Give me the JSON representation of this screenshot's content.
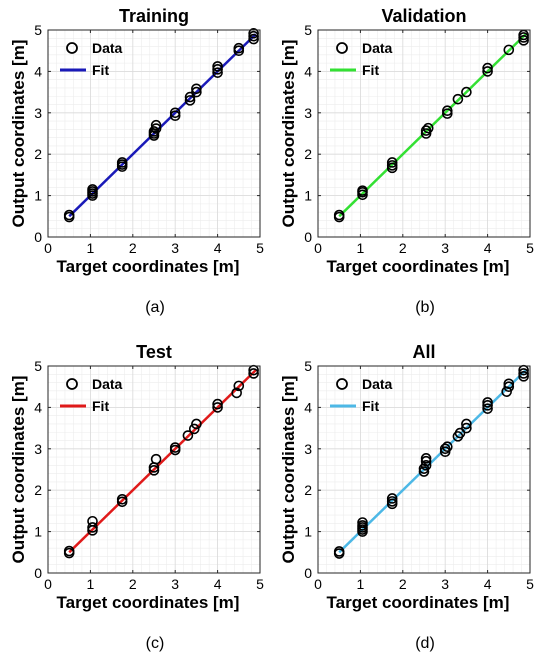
{
  "chart_data": [
    {
      "type": "scatter",
      "panel": "(a)",
      "title": "Training",
      "xlabel": "Target coordinates [m]",
      "ylabel": "Output coordinates [m]",
      "xlim": [
        0,
        5
      ],
      "ylim": [
        0,
        5
      ],
      "xticks": [
        "0",
        "1",
        "2",
        "3",
        "4",
        "5"
      ],
      "yticks": [
        "0",
        "1",
        "2",
        "3",
        "4",
        "5"
      ],
      "grid": true,
      "legend_position": "top-left",
      "fit_color": "#1a1ab8",
      "series": [
        {
          "name": "Data",
          "marker": "circle",
          "points": [
            [
              0.5,
              0.48
            ],
            [
              0.5,
              0.53
            ],
            [
              1.05,
              1.0
            ],
            [
              1.05,
              1.05
            ],
            [
              1.05,
              1.1
            ],
            [
              1.05,
              1.15
            ],
            [
              1.75,
              1.7
            ],
            [
              1.75,
              1.75
            ],
            [
              1.75,
              1.8
            ],
            [
              2.5,
              2.45
            ],
            [
              2.5,
              2.5
            ],
            [
              2.5,
              2.55
            ],
            [
              2.55,
              2.62
            ],
            [
              2.55,
              2.7
            ],
            [
              3.0,
              2.93
            ],
            [
              3.0,
              3.0
            ],
            [
              3.35,
              3.3
            ],
            [
              3.35,
              3.38
            ],
            [
              3.5,
              3.5
            ],
            [
              3.5,
              3.58
            ],
            [
              4.0,
              3.97
            ],
            [
              4.0,
              4.05
            ],
            [
              4.0,
              4.12
            ],
            [
              4.5,
              4.5
            ],
            [
              4.5,
              4.56
            ],
            [
              4.85,
              4.78
            ],
            [
              4.85,
              4.85
            ],
            [
              4.85,
              4.92
            ]
          ]
        },
        {
          "name": "Fit",
          "line": [
            [
              0.5,
              0.5
            ],
            [
              4.9,
              4.9
            ]
          ]
        }
      ]
    },
    {
      "type": "scatter",
      "panel": "(b)",
      "title": "Validation",
      "xlabel": "Target coordinates [m]",
      "ylabel": "Output coordinates [m]",
      "xlim": [
        0,
        5
      ],
      "ylim": [
        0,
        5
      ],
      "xticks": [
        "0",
        "1",
        "2",
        "3",
        "4",
        "5"
      ],
      "yticks": [
        "0",
        "1",
        "2",
        "3",
        "4",
        "5"
      ],
      "grid": true,
      "legend_position": "top-left",
      "fit_color": "#33e033",
      "series": [
        {
          "name": "Data",
          "marker": "circle",
          "points": [
            [
              0.5,
              0.48
            ],
            [
              0.5,
              0.53
            ],
            [
              1.05,
              1.02
            ],
            [
              1.05,
              1.08
            ],
            [
              1.05,
              1.12
            ],
            [
              1.75,
              1.67
            ],
            [
              1.75,
              1.73
            ],
            [
              1.75,
              1.8
            ],
            [
              2.55,
              2.5
            ],
            [
              2.55,
              2.57
            ],
            [
              2.6,
              2.63
            ],
            [
              3.05,
              2.98
            ],
            [
              3.05,
              3.05
            ],
            [
              3.3,
              3.33
            ],
            [
              3.5,
              3.5
            ],
            [
              4.0,
              4.0
            ],
            [
              4.0,
              4.08
            ],
            [
              4.5,
              4.52
            ],
            [
              4.85,
              4.75
            ],
            [
              4.85,
              4.82
            ],
            [
              4.85,
              4.88
            ]
          ]
        },
        {
          "name": "Fit",
          "line": [
            [
              0.5,
              0.5
            ],
            [
              4.9,
              4.9
            ]
          ]
        }
      ]
    },
    {
      "type": "scatter",
      "panel": "(c)",
      "title": "Test",
      "xlabel": "Target coordinates [m]",
      "ylabel": "Output coordinates [m]",
      "xlim": [
        0,
        5
      ],
      "ylim": [
        0,
        5
      ],
      "xticks": [
        "0",
        "1",
        "2",
        "3",
        "4",
        "5"
      ],
      "yticks": [
        "0",
        "1",
        "2",
        "3",
        "4",
        "5"
      ],
      "grid": true,
      "legend_position": "top-left",
      "fit_color": "#e01a1a",
      "series": [
        {
          "name": "Data",
          "marker": "circle",
          "points": [
            [
              0.5,
              0.48
            ],
            [
              0.5,
              0.53
            ],
            [
              1.05,
              1.03
            ],
            [
              1.05,
              1.1
            ],
            [
              1.05,
              1.25
            ],
            [
              1.75,
              1.72
            ],
            [
              1.75,
              1.78
            ],
            [
              2.5,
              2.48
            ],
            [
              2.5,
              2.55
            ],
            [
              2.55,
              2.75
            ],
            [
              3.0,
              2.97
            ],
            [
              3.0,
              3.03
            ],
            [
              3.3,
              3.32
            ],
            [
              3.45,
              3.48
            ],
            [
              3.5,
              3.6
            ],
            [
              4.0,
              4.0
            ],
            [
              4.0,
              4.08
            ],
            [
              4.45,
              4.35
            ],
            [
              4.5,
              4.52
            ],
            [
              4.85,
              4.82
            ],
            [
              4.85,
              4.9
            ]
          ]
        },
        {
          "name": "Fit",
          "line": [
            [
              0.5,
              0.5
            ],
            [
              4.9,
              4.9
            ]
          ]
        }
      ]
    },
    {
      "type": "scatter",
      "panel": "(d)",
      "title": "All",
      "xlabel": "Target coordinates [m]",
      "ylabel": "Output coordinates [m]",
      "xlim": [
        0,
        5
      ],
      "ylim": [
        0,
        5
      ],
      "xticks": [
        "0",
        "1",
        "2",
        "3",
        "4",
        "5"
      ],
      "yticks": [
        "0",
        "1",
        "2",
        "3",
        "4",
        "5"
      ],
      "grid": true,
      "legend_position": "top-left",
      "fit_color": "#4db8e6",
      "series": [
        {
          "name": "Data",
          "marker": "circle",
          "points": [
            [
              0.5,
              0.47
            ],
            [
              0.5,
              0.52
            ],
            [
              1.05,
              1.0
            ],
            [
              1.05,
              1.05
            ],
            [
              1.05,
              1.1
            ],
            [
              1.05,
              1.15
            ],
            [
              1.05,
              1.22
            ],
            [
              1.75,
              1.67
            ],
            [
              1.75,
              1.73
            ],
            [
              1.75,
              1.8
            ],
            [
              2.5,
              2.45
            ],
            [
              2.5,
              2.52
            ],
            [
              2.55,
              2.6
            ],
            [
              2.55,
              2.7
            ],
            [
              2.55,
              2.77
            ],
            [
              3.0,
              2.93
            ],
            [
              3.0,
              3.0
            ],
            [
              3.05,
              3.05
            ],
            [
              3.3,
              3.3
            ],
            [
              3.35,
              3.38
            ],
            [
              3.5,
              3.5
            ],
            [
              3.5,
              3.6
            ],
            [
              4.0,
              3.97
            ],
            [
              4.0,
              4.05
            ],
            [
              4.0,
              4.12
            ],
            [
              4.45,
              4.38
            ],
            [
              4.5,
              4.5
            ],
            [
              4.5,
              4.57
            ],
            [
              4.85,
              4.75
            ],
            [
              4.85,
              4.82
            ],
            [
              4.85,
              4.9
            ]
          ]
        },
        {
          "name": "Fit",
          "line": [
            [
              0.5,
              0.5
            ],
            [
              4.9,
              4.9
            ]
          ]
        }
      ]
    }
  ]
}
